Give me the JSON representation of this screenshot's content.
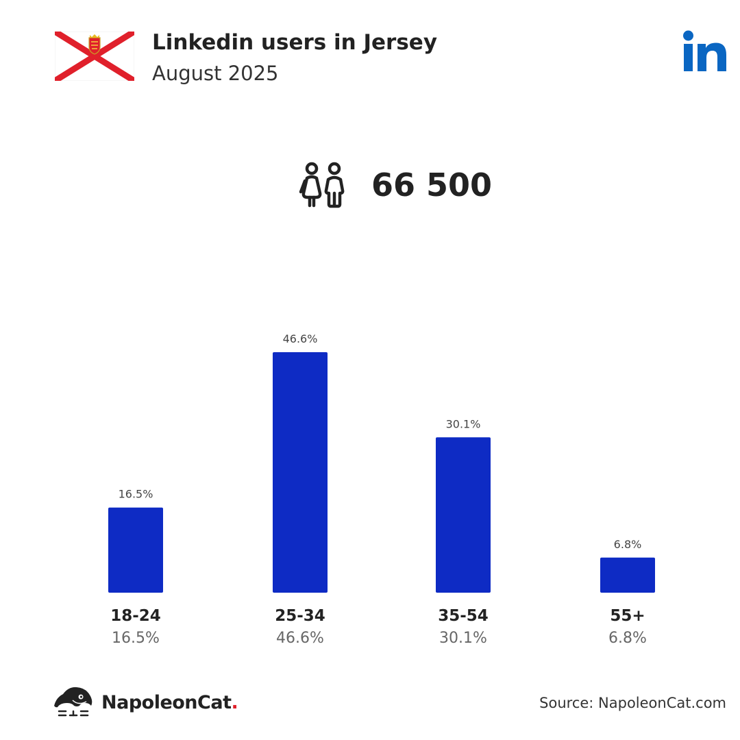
{
  "header": {
    "title": "Linkedin users in Jersey",
    "subtitle": "August 2025",
    "platform_icon": "linkedin-icon",
    "flag_icon": "jersey-flag-icon"
  },
  "total": {
    "icon": "users-icon",
    "value": "66 500"
  },
  "chart_data": {
    "type": "bar",
    "categories": [
      "18-24",
      "25-34",
      "35-54",
      "55+"
    ],
    "values": [
      16.5,
      46.6,
      30.1,
      6.8
    ],
    "value_labels": [
      "16.5%",
      "46.6%",
      "30.1%",
      "6.8%"
    ],
    "title": "",
    "xlabel": "",
    "ylabel": "",
    "ylim": [
      0,
      46.6
    ],
    "grid": false,
    "bar_color": "#0e2bc4"
  },
  "footer": {
    "brand_name": "NapoleonCat",
    "brand_dot": ".",
    "source": "Source: NapoleonCat.com"
  },
  "colors": {
    "linkedin_blue": "#0a66c2",
    "flag_red": "#e0202b",
    "bar_blue": "#0e2bc4"
  }
}
